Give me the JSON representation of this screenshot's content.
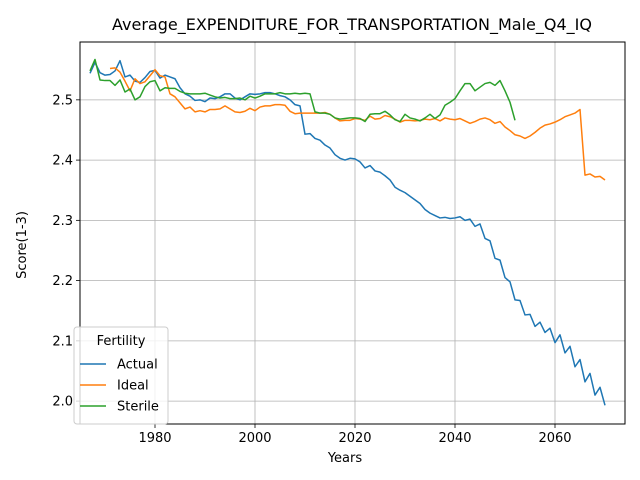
{
  "chart_data": {
    "type": "line",
    "title": "Average_EXPENDITURE_FOR_TRANSPORTATION_Male_Q4_IQ",
    "xlabel": "Years",
    "ylabel": "Score(1-3)",
    "xlim": [
      1965,
      2074
    ],
    "ylim": [
      1.962,
      2.596
    ],
    "xticks": [
      1980,
      2000,
      2020,
      2040,
      2060
    ],
    "yticks": [
      2.0,
      2.1,
      2.2,
      2.3,
      2.4,
      2.5
    ],
    "ytick_labels": [
      "2.0",
      "2.1",
      "2.2",
      "2.3",
      "2.4",
      "2.5"
    ],
    "grid": true,
    "legend": {
      "title": "Fertility",
      "placement": "lower-left"
    },
    "series": [
      {
        "name": "Actual",
        "color": "#1f77b4",
        "x": [
          1967,
          1968,
          1969,
          1970,
          1971,
          1972,
          1973,
          1974,
          1975,
          1976,
          1977,
          1978,
          1979,
          1980,
          1981,
          1982,
          1983,
          1984,
          1985,
          1986,
          1987,
          1988,
          1989,
          1990,
          1991,
          1992,
          1993,
          1994,
          1995,
          1996,
          1997,
          1998,
          1999,
          2000,
          2001,
          2002,
          2003,
          2004,
          2005,
          2006,
          2007,
          2008,
          2009,
          2010,
          2011,
          2012,
          2013,
          2014,
          2015,
          2016,
          2017,
          2018,
          2019,
          2020,
          2021,
          2022,
          2023,
          2024,
          2025,
          2026,
          2027,
          2028,
          2029,
          2030,
          2031,
          2032,
          2033,
          2034,
          2035,
          2036,
          2037,
          2038,
          2039,
          2040,
          2041,
          2042,
          2043,
          2044,
          2045,
          2046,
          2047,
          2048,
          2049,
          2050,
          2051,
          2052,
          2053,
          2054,
          2055,
          2056,
          2057,
          2058,
          2059,
          2060,
          2061,
          2062,
          2063,
          2064,
          2065,
          2066,
          2067,
          2068,
          2069,
          2070
        ],
        "y": [
          2.544,
          2.562,
          2.545,
          2.541,
          2.542,
          2.548,
          2.565,
          2.538,
          2.541,
          2.531,
          2.529,
          2.537,
          2.547,
          2.549,
          2.536,
          2.541,
          2.538,
          2.535,
          2.52,
          2.51,
          2.506,
          2.499,
          2.5,
          2.497,
          2.503,
          2.502,
          2.505,
          2.51,
          2.51,
          2.503,
          2.5,
          2.505,
          2.51,
          2.509,
          2.51,
          2.512,
          2.512,
          2.51,
          2.507,
          2.505,
          2.5,
          2.492,
          2.49,
          2.443,
          2.444,
          2.436,
          2.433,
          2.425,
          2.42,
          2.409,
          2.403,
          2.4,
          2.403,
          2.402,
          2.397,
          2.387,
          2.391,
          2.382,
          2.38,
          2.374,
          2.367,
          2.355,
          2.35,
          2.346,
          2.34,
          2.334,
          2.328,
          2.318,
          2.312,
          2.308,
          2.304,
          2.305,
          2.303,
          2.304,
          2.306,
          2.3,
          2.302,
          2.29,
          2.294,
          2.27,
          2.266,
          2.237,
          2.234,
          2.205,
          2.198,
          2.168,
          2.167,
          2.143,
          2.144,
          2.124,
          2.131,
          2.114,
          2.121,
          2.097,
          2.11,
          2.08,
          2.091,
          2.057,
          2.069,
          2.032,
          2.046,
          2.01,
          2.023,
          1.993
        ]
      },
      {
        "name": "Ideal",
        "color": "#ff7f0e",
        "x": [
          1971,
          1972,
          1973,
          1974,
          1975,
          1976,
          1977,
          1978,
          1979,
          1980,
          1981,
          1982,
          1983,
          1984,
          1985,
          1986,
          1987,
          1988,
          1989,
          1990,
          1991,
          1992,
          1993,
          1994,
          1995,
          1996,
          1997,
          1998,
          1999,
          2000,
          2001,
          2002,
          2003,
          2004,
          2005,
          2006,
          2007,
          2008,
          2009,
          2010,
          2011,
          2012,
          2013,
          2014,
          2015,
          2016,
          2017,
          2018,
          2019,
          2020,
          2021,
          2022,
          2023,
          2024,
          2025,
          2026,
          2027,
          2028,
          2029,
          2030,
          2031,
          2032,
          2033,
          2034,
          2035,
          2036,
          2037,
          2038,
          2039,
          2040,
          2041,
          2042,
          2043,
          2044,
          2045,
          2046,
          2047,
          2048,
          2049,
          2050,
          2051,
          2052,
          2053,
          2054,
          2055,
          2056,
          2057,
          2058,
          2059,
          2060,
          2061,
          2062,
          2063,
          2064,
          2065,
          2066,
          2067,
          2068,
          2069,
          2070
        ],
        "y": [
          2.552,
          2.553,
          2.546,
          2.531,
          2.515,
          2.535,
          2.527,
          2.53,
          2.54,
          2.55,
          2.54,
          2.538,
          2.51,
          2.505,
          2.495,
          2.485,
          2.488,
          2.48,
          2.482,
          2.48,
          2.484,
          2.484,
          2.485,
          2.49,
          2.485,
          2.48,
          2.479,
          2.481,
          2.486,
          2.482,
          2.488,
          2.49,
          2.49,
          2.492,
          2.492,
          2.491,
          2.481,
          2.477,
          2.478,
          2.478,
          2.478,
          2.478,
          2.478,
          2.479,
          2.476,
          2.47,
          2.465,
          2.466,
          2.466,
          2.469,
          2.468,
          2.466,
          2.473,
          2.468,
          2.469,
          2.474,
          2.472,
          2.468,
          2.463,
          2.466,
          2.466,
          2.465,
          2.466,
          2.468,
          2.467,
          2.469,
          2.465,
          2.47,
          2.468,
          2.467,
          2.469,
          2.465,
          2.461,
          2.464,
          2.468,
          2.47,
          2.467,
          2.461,
          2.464,
          2.455,
          2.449,
          2.442,
          2.44,
          2.436,
          2.44,
          2.446,
          2.453,
          2.458,
          2.46,
          2.463,
          2.467,
          2.472,
          2.475,
          2.478,
          2.484,
          2.375,
          2.377,
          2.372,
          2.373,
          2.367
        ]
      },
      {
        "name": "Sterile",
        "color": "#2ca02c",
        "x": [
          1967,
          1968,
          1969,
          1970,
          1971,
          1972,
          1973,
          1974,
          1975,
          1976,
          1977,
          1978,
          1979,
          1980,
          1981,
          1982,
          1983,
          1984,
          1985,
          1986,
          1987,
          1988,
          1989,
          1990,
          1991,
          1992,
          1993,
          1994,
          1995,
          1996,
          1997,
          1998,
          1999,
          2000,
          2001,
          2002,
          2003,
          2004,
          2005,
          2006,
          2007,
          2008,
          2009,
          2010,
          2011,
          2012,
          2013,
          2014,
          2015,
          2016,
          2017,
          2018,
          2019,
          2020,
          2021,
          2022,
          2023,
          2024,
          2025,
          2026,
          2027,
          2028,
          2029,
          2030,
          2031,
          2032,
          2033,
          2034,
          2035,
          2036,
          2037,
          2038,
          2039,
          2040,
          2041,
          2042,
          2043,
          2044,
          2045,
          2046,
          2047,
          2048,
          2049,
          2050,
          2051,
          2052
        ],
        "y": [
          2.548,
          2.567,
          2.533,
          2.532,
          2.532,
          2.524,
          2.533,
          2.513,
          2.518,
          2.5,
          2.505,
          2.522,
          2.53,
          2.532,
          2.515,
          2.52,
          2.519,
          2.519,
          2.514,
          2.511,
          2.51,
          2.51,
          2.51,
          2.511,
          2.508,
          2.505,
          2.503,
          2.504,
          2.502,
          2.502,
          2.503,
          2.5,
          2.506,
          2.503,
          2.506,
          2.51,
          2.51,
          2.51,
          2.512,
          2.51,
          2.51,
          2.511,
          2.51,
          2.511,
          2.51,
          2.48,
          2.478,
          2.478,
          2.476,
          2.47,
          2.468,
          2.469,
          2.47,
          2.47,
          2.469,
          2.464,
          2.476,
          2.477,
          2.477,
          2.481,
          2.475,
          2.467,
          2.464,
          2.476,
          2.47,
          2.468,
          2.465,
          2.47,
          2.476,
          2.469,
          2.475,
          2.491,
          2.496,
          2.502,
          2.515,
          2.527,
          2.527,
          2.515,
          2.521,
          2.527,
          2.529,
          2.524,
          2.532,
          2.515,
          2.496,
          2.466
        ]
      }
    ]
  }
}
